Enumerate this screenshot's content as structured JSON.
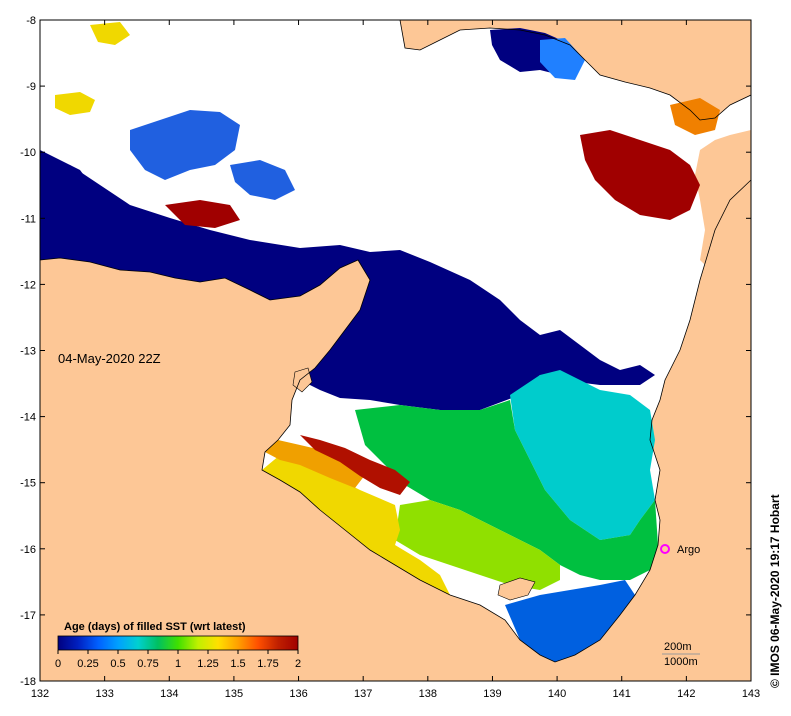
{
  "map": {
    "date_label": "04-May-2020 22Z",
    "x_ticks": [
      "132",
      "133",
      "134",
      "135",
      "136",
      "137",
      "138",
      "139",
      "140",
      "141",
      "142",
      "143"
    ],
    "y_ticks": [
      "-8",
      "-9",
      "-10",
      "-11",
      "-12",
      "-13",
      "-14",
      "-15",
      "-16",
      "-17",
      "-18"
    ],
    "colors": {
      "land": "#fdc796",
      "no_data": "#ffffff",
      "coast": "#000000",
      "reef_outline": "#999999"
    }
  },
  "legend": {
    "title": "Age (days) of filled SST (wrt latest)",
    "ticks": [
      "0",
      "0.25",
      "0.5",
      "0.75",
      "1",
      "1.25",
      "1.5",
      "1.75",
      "2"
    ],
    "colormap": [
      "#000080",
      "#0020c0",
      "#0060ff",
      "#00a0ff",
      "#00d0d0",
      "#00c060",
      "#40e000",
      "#c0f000",
      "#ffe000",
      "#ffa000",
      "#ff5000",
      "#c02000",
      "#a00000"
    ]
  },
  "markers": {
    "argo": {
      "label": "Argo",
      "color": "#ff00ff"
    }
  },
  "depth_key": {
    "shallow": "200m",
    "deep": "1000m"
  },
  "credit": "© IMOS 06-May-2020 19:17 Hobart"
}
